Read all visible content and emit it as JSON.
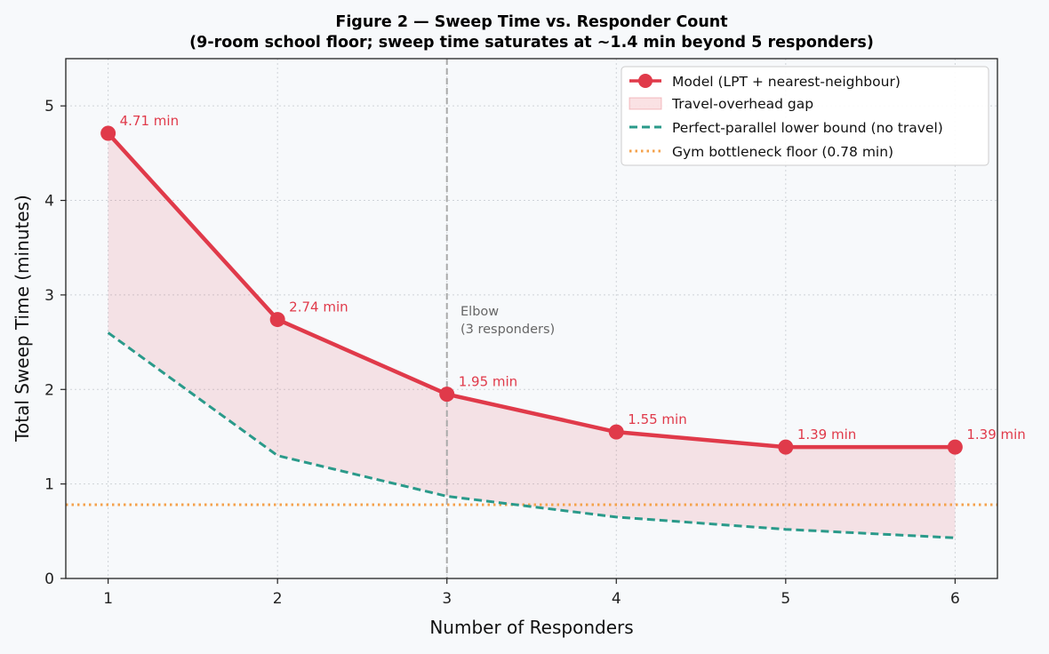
{
  "chart_data": {
    "type": "line",
    "title_line1": "Figure 2 — Sweep Time vs. Responder Count",
    "title_line2": "(9-room school floor; sweep time saturates at ~1.4 min beyond 5 responders)",
    "xlabel": "Number of Responders",
    "ylabel": "Total Sweep Time (minutes)",
    "xlim": [
      0.75,
      6.25
    ],
    "ylim": [
      0,
      5.5
    ],
    "x_ticks": [
      1,
      2,
      3,
      4,
      5,
      6
    ],
    "y_ticks": [
      0,
      1,
      2,
      3,
      4,
      5
    ],
    "x": [
      1,
      2,
      3,
      4,
      5,
      6
    ],
    "grid": true,
    "legend_position": "top-right",
    "series": [
      {
        "name": "Model (LPT + nearest-neighbour)",
        "values": [
          4.71,
          2.74,
          1.95,
          1.55,
          1.39,
          1.39
        ],
        "labels": [
          "4.71 min",
          "2.74 min",
          "1.95 min",
          "1.55 min",
          "1.39 min",
          "1.39 min"
        ],
        "color": "#e03a4a",
        "style": "solid-markers"
      },
      {
        "name": "Perfect-parallel lower bound (no travel)",
        "values": [
          2.6,
          1.3,
          0.87,
          0.65,
          0.52,
          0.43
        ],
        "color": "#2a9a8a",
        "style": "dashed"
      }
    ],
    "fill_between": {
      "name": "Travel-overhead gap",
      "color": "#e03a4a"
    },
    "hline": {
      "name": "Gym bottleneck floor (0.78 min)",
      "y": 0.78,
      "color": "#f4a24c",
      "style": "dotted"
    },
    "vline": {
      "x": 3,
      "color": "#aaaaaa",
      "annotation_line1": "Elbow",
      "annotation_line2": "(3 responders)"
    }
  }
}
